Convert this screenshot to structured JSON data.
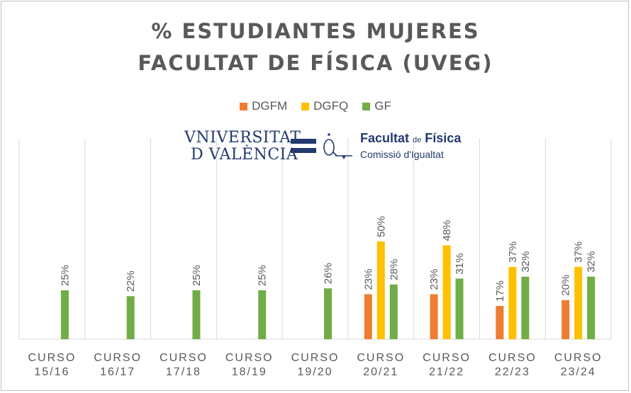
{
  "chart_data": {
    "type": "bar",
    "title_lines": [
      "% ESTUDIANTES  MUJERES",
      "FACULTAT  DE FÍSICA  (UVEG)"
    ],
    "categories": [
      [
        "CURSO",
        "15/16"
      ],
      [
        "CURSO",
        "16/17"
      ],
      [
        "CURSO",
        "17/18"
      ],
      [
        "CURSO",
        "18/19"
      ],
      [
        "CURSO",
        "19/20"
      ],
      [
        "CURSO",
        "20/21"
      ],
      [
        "CURSO",
        "21/22"
      ],
      [
        "CURSO",
        "22/23"
      ],
      [
        "CURSO",
        "23/24"
      ]
    ],
    "series": [
      {
        "name": "DGFM",
        "color": "#ed7d31",
        "values": [
          null,
          null,
          null,
          null,
          null,
          23,
          23,
          17,
          20
        ],
        "labels": [
          "",
          "",
          "",
          "",
          "",
          "23%",
          "23%",
          "17%",
          "20%"
        ]
      },
      {
        "name": "DGFQ",
        "color": "#ffc000",
        "values": [
          null,
          null,
          null,
          null,
          null,
          50,
          48,
          37,
          37
        ],
        "labels": [
          "",
          "",
          "",
          "",
          "",
          "50%",
          "48%",
          "37%",
          "37%"
        ]
      },
      {
        "name": "GF",
        "color": "#70ad47",
        "values": [
          25,
          22,
          25,
          25,
          26,
          28,
          31,
          32,
          32
        ],
        "labels": [
          "25%",
          "22%",
          "25%",
          "25%",
          "26%",
          "28%",
          "31%",
          "32%",
          "32%"
        ]
      }
    ],
    "ylim": [
      0,
      100
    ],
    "xlabel": "",
    "ylabel": "",
    "grid": "vertical category separators",
    "legend_position": "top"
  },
  "logos": {
    "uv_line1": "VNIVERSITAT",
    "uv_line2_prefix": "D",
    "uv_line2": "VALÈNCIA",
    "ff_title": "Facultat",
    "ff_de": "de",
    "ff_fisica": "Física",
    "ff_sub": "Comissió d'Igualtat"
  },
  "colors": {
    "axis": "#d9d9d9",
    "text": "#595959",
    "uv_blue": "#233a6e"
  }
}
